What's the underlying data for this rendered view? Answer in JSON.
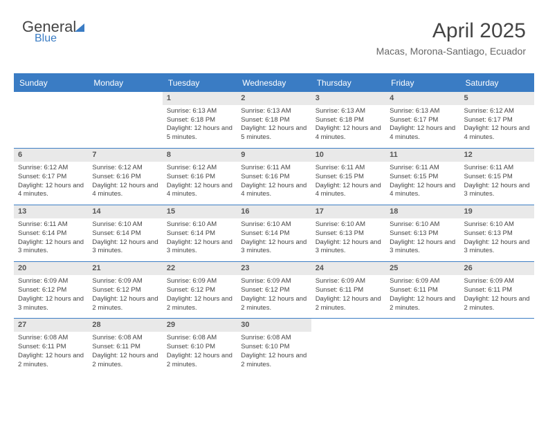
{
  "brand": {
    "line1": "General",
    "line2": "Blue"
  },
  "title": {
    "month": "April 2025",
    "location": "Macas, Morona-Santiago, Ecuador"
  },
  "colors": {
    "accent": "#3a7cc4",
    "dayHeaderBg": "#e9e9e9",
    "text": "#444"
  },
  "dayHeaders": [
    "Sunday",
    "Monday",
    "Tuesday",
    "Wednesday",
    "Thursday",
    "Friday",
    "Saturday"
  ],
  "weeks": [
    [
      {
        "n": "",
        "sr": "",
        "ss": "",
        "dl": "",
        "empty": true
      },
      {
        "n": "",
        "sr": "",
        "ss": "",
        "dl": "",
        "empty": true
      },
      {
        "n": "1",
        "sr": "Sunrise: 6:13 AM",
        "ss": "Sunset: 6:18 PM",
        "dl": "Daylight: 12 hours and 5 minutes."
      },
      {
        "n": "2",
        "sr": "Sunrise: 6:13 AM",
        "ss": "Sunset: 6:18 PM",
        "dl": "Daylight: 12 hours and 5 minutes."
      },
      {
        "n": "3",
        "sr": "Sunrise: 6:13 AM",
        "ss": "Sunset: 6:18 PM",
        "dl": "Daylight: 12 hours and 4 minutes."
      },
      {
        "n": "4",
        "sr": "Sunrise: 6:13 AM",
        "ss": "Sunset: 6:17 PM",
        "dl": "Daylight: 12 hours and 4 minutes."
      },
      {
        "n": "5",
        "sr": "Sunrise: 6:12 AM",
        "ss": "Sunset: 6:17 PM",
        "dl": "Daylight: 12 hours and 4 minutes."
      }
    ],
    [
      {
        "n": "6",
        "sr": "Sunrise: 6:12 AM",
        "ss": "Sunset: 6:17 PM",
        "dl": "Daylight: 12 hours and 4 minutes."
      },
      {
        "n": "7",
        "sr": "Sunrise: 6:12 AM",
        "ss": "Sunset: 6:16 PM",
        "dl": "Daylight: 12 hours and 4 minutes."
      },
      {
        "n": "8",
        "sr": "Sunrise: 6:12 AM",
        "ss": "Sunset: 6:16 PM",
        "dl": "Daylight: 12 hours and 4 minutes."
      },
      {
        "n": "9",
        "sr": "Sunrise: 6:11 AM",
        "ss": "Sunset: 6:16 PM",
        "dl": "Daylight: 12 hours and 4 minutes."
      },
      {
        "n": "10",
        "sr": "Sunrise: 6:11 AM",
        "ss": "Sunset: 6:15 PM",
        "dl": "Daylight: 12 hours and 4 minutes."
      },
      {
        "n": "11",
        "sr": "Sunrise: 6:11 AM",
        "ss": "Sunset: 6:15 PM",
        "dl": "Daylight: 12 hours and 4 minutes."
      },
      {
        "n": "12",
        "sr": "Sunrise: 6:11 AM",
        "ss": "Sunset: 6:15 PM",
        "dl": "Daylight: 12 hours and 3 minutes."
      }
    ],
    [
      {
        "n": "13",
        "sr": "Sunrise: 6:11 AM",
        "ss": "Sunset: 6:14 PM",
        "dl": "Daylight: 12 hours and 3 minutes."
      },
      {
        "n": "14",
        "sr": "Sunrise: 6:10 AM",
        "ss": "Sunset: 6:14 PM",
        "dl": "Daylight: 12 hours and 3 minutes."
      },
      {
        "n": "15",
        "sr": "Sunrise: 6:10 AM",
        "ss": "Sunset: 6:14 PM",
        "dl": "Daylight: 12 hours and 3 minutes."
      },
      {
        "n": "16",
        "sr": "Sunrise: 6:10 AM",
        "ss": "Sunset: 6:14 PM",
        "dl": "Daylight: 12 hours and 3 minutes."
      },
      {
        "n": "17",
        "sr": "Sunrise: 6:10 AM",
        "ss": "Sunset: 6:13 PM",
        "dl": "Daylight: 12 hours and 3 minutes."
      },
      {
        "n": "18",
        "sr": "Sunrise: 6:10 AM",
        "ss": "Sunset: 6:13 PM",
        "dl": "Daylight: 12 hours and 3 minutes."
      },
      {
        "n": "19",
        "sr": "Sunrise: 6:10 AM",
        "ss": "Sunset: 6:13 PM",
        "dl": "Daylight: 12 hours and 3 minutes."
      }
    ],
    [
      {
        "n": "20",
        "sr": "Sunrise: 6:09 AM",
        "ss": "Sunset: 6:12 PM",
        "dl": "Daylight: 12 hours and 3 minutes."
      },
      {
        "n": "21",
        "sr": "Sunrise: 6:09 AM",
        "ss": "Sunset: 6:12 PM",
        "dl": "Daylight: 12 hours and 2 minutes."
      },
      {
        "n": "22",
        "sr": "Sunrise: 6:09 AM",
        "ss": "Sunset: 6:12 PM",
        "dl": "Daylight: 12 hours and 2 minutes."
      },
      {
        "n": "23",
        "sr": "Sunrise: 6:09 AM",
        "ss": "Sunset: 6:12 PM",
        "dl": "Daylight: 12 hours and 2 minutes."
      },
      {
        "n": "24",
        "sr": "Sunrise: 6:09 AM",
        "ss": "Sunset: 6:11 PM",
        "dl": "Daylight: 12 hours and 2 minutes."
      },
      {
        "n": "25",
        "sr": "Sunrise: 6:09 AM",
        "ss": "Sunset: 6:11 PM",
        "dl": "Daylight: 12 hours and 2 minutes."
      },
      {
        "n": "26",
        "sr": "Sunrise: 6:09 AM",
        "ss": "Sunset: 6:11 PM",
        "dl": "Daylight: 12 hours and 2 minutes."
      }
    ],
    [
      {
        "n": "27",
        "sr": "Sunrise: 6:08 AM",
        "ss": "Sunset: 6:11 PM",
        "dl": "Daylight: 12 hours and 2 minutes."
      },
      {
        "n": "28",
        "sr": "Sunrise: 6:08 AM",
        "ss": "Sunset: 6:11 PM",
        "dl": "Daylight: 12 hours and 2 minutes."
      },
      {
        "n": "29",
        "sr": "Sunrise: 6:08 AM",
        "ss": "Sunset: 6:10 PM",
        "dl": "Daylight: 12 hours and 2 minutes."
      },
      {
        "n": "30",
        "sr": "Sunrise: 6:08 AM",
        "ss": "Sunset: 6:10 PM",
        "dl": "Daylight: 12 hours and 2 minutes."
      },
      {
        "n": "",
        "sr": "",
        "ss": "",
        "dl": "",
        "empty": true
      },
      {
        "n": "",
        "sr": "",
        "ss": "",
        "dl": "",
        "empty": true
      },
      {
        "n": "",
        "sr": "",
        "ss": "",
        "dl": "",
        "empty": true
      }
    ]
  ]
}
